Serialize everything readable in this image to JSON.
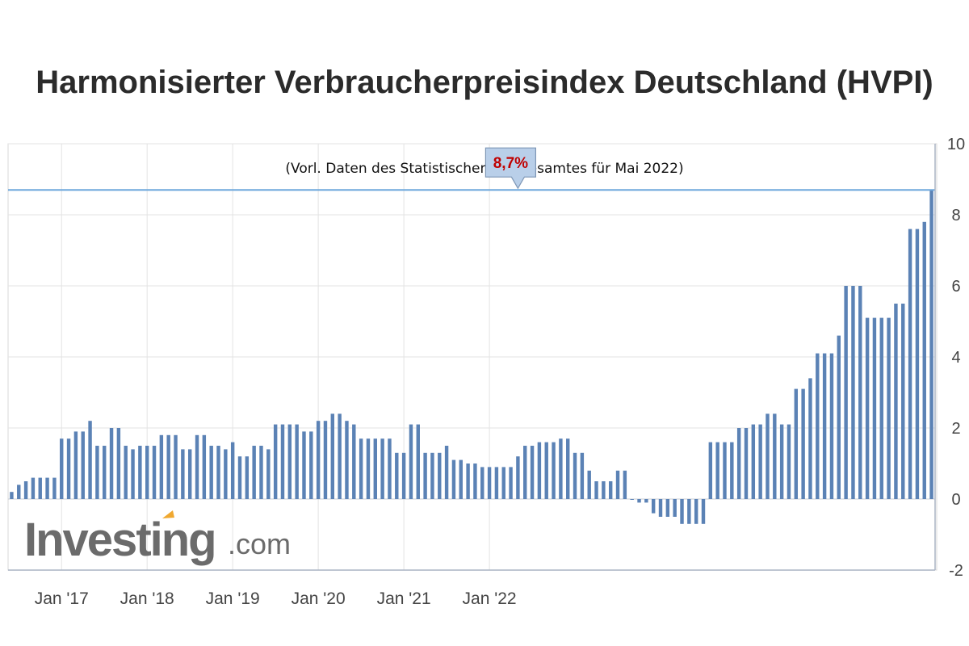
{
  "title": "Harmonisierter Verbraucherpreisindex Deutschland (HVPI)",
  "subtitle": "(Vorl. Daten des Statistischen Bundesamtes für Mai 2022)",
  "callout_label": "8,7%",
  "logo": {
    "main": "Investing",
    "suffix": ".com"
  },
  "colors": {
    "bar": "#5b82b5",
    "reference_line": "#6fa8dc",
    "callout_fill": "#b9cfe9",
    "callout_text": "#c00000",
    "logo_accent": "#f0a830"
  },
  "chart_data": {
    "type": "bar",
    "title": "Harmonisierter Verbraucherpreisindex Deutschland (HVPI)",
    "subtitle": "(Vorl. Daten des Statistischen Bundesamtes für Mai 2022)",
    "y_axis_position": "right",
    "ylim": [
      -2,
      10
    ],
    "yticks": [
      10,
      8,
      6,
      4,
      2,
      0,
      -2
    ],
    "x_ticks": [
      "Jan '17",
      "Jan '18",
      "Jan '19",
      "Jan '20",
      "Jan '21",
      "Jan '22"
    ],
    "x_start": "2016-06",
    "x_end": "2022-05",
    "grid": true,
    "reference_line": 8.7,
    "callout": {
      "x": "2022-05",
      "label": "8,7%"
    },
    "values": [
      0.2,
      0.4,
      0.5,
      0.6,
      0.6,
      0.6,
      0.6,
      1.7,
      1.7,
      1.9,
      1.9,
      2.2,
      1.5,
      1.5,
      2.0,
      2.0,
      1.5,
      1.4,
      1.5,
      1.5,
      1.5,
      1.8,
      1.8,
      1.8,
      1.4,
      1.4,
      1.8,
      1.8,
      1.5,
      1.5,
      1.4,
      1.6,
      1.2,
      1.2,
      1.5,
      1.5,
      1.4,
      2.1,
      2.1,
      2.1,
      2.1,
      1.9,
      1.9,
      2.2,
      2.2,
      2.4,
      2.4,
      2.2,
      2.1,
      1.7,
      1.7,
      1.7,
      1.7,
      1.7,
      1.3,
      1.3,
      2.1,
      2.1,
      1.3,
      1.3,
      1.3,
      1.5,
      1.1,
      1.1,
      1.0,
      1.0,
      0.9,
      0.9,
      0.9,
      0.9,
      0.9,
      1.2,
      1.5,
      1.5,
      1.6,
      1.6,
      1.6,
      1.7,
      1.7,
      1.3,
      1.3,
      0.8,
      0.5,
      0.5,
      0.5,
      0.8,
      0.8,
      0.0,
      -0.1,
      -0.1,
      -0.4,
      -0.5,
      -0.5,
      -0.5,
      -0.7,
      -0.7,
      -0.7,
      -0.7,
      1.6,
      1.6,
      1.6,
      1.6,
      2.0,
      2.0,
      2.1,
      2.1,
      2.4,
      2.4,
      2.1,
      2.1,
      3.1,
      3.1,
      3.4,
      4.1,
      4.1,
      4.1,
      4.6,
      6.0,
      6.0,
      6.0,
      5.1,
      5.1,
      5.1,
      5.1,
      5.5,
      5.5,
      7.6,
      7.6,
      7.8,
      8.7
    ]
  }
}
